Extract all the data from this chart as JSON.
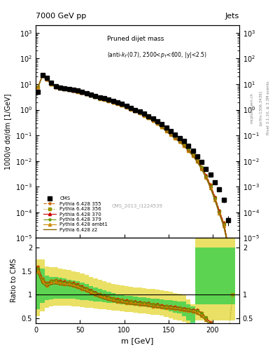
{
  "title_top": "7000 GeV pp",
  "title_right": "Jets",
  "annotation": "Pruned dijet mass (anti-k_{T}(0.7), 2500<p_{T}<600, |y|<2.5)",
  "cms_label": "CMS_2013_I1224539",
  "rivet_label": "Rivet 3.1.10, ≥ 3.3M events",
  "arxiv_label": "[arXiv:1306.3436]",
  "mcplots_label": "mcplots.cern.ch",
  "ylabel_main": "1000/σ dσ/dm [1/GeV]",
  "ylabel_ratio": "Ratio to CMS",
  "xlabel": "m [GeV]",
  "xlim": [
    0,
    230
  ],
  "ylim_main": [
    1e-05,
    2000.0
  ],
  "ylim_ratio": [
    0.4,
    2.2
  ],
  "cms_x": [
    2.5,
    7.5,
    12.5,
    17.5,
    22.5,
    27.5,
    32.5,
    37.5,
    42.5,
    47.5,
    52.5,
    57.5,
    62.5,
    67.5,
    72.5,
    77.5,
    82.5,
    87.5,
    92.5,
    97.5,
    102.5,
    107.5,
    112.5,
    117.5,
    122.5,
    127.5,
    132.5,
    137.5,
    142.5,
    147.5,
    152.5,
    157.5,
    162.5,
    167.5,
    172.5,
    177.5,
    182.5,
    187.5,
    192.5,
    197.5,
    202.5,
    207.5,
    212.5,
    217.5,
    222.5
  ],
  "cms_y": [
    5.0,
    22.0,
    18.0,
    11.0,
    8.5,
    7.5,
    7.0,
    6.5,
    6.0,
    5.5,
    5.0,
    4.5,
    4.0,
    3.5,
    3.0,
    2.8,
    2.5,
    2.2,
    2.0,
    1.7,
    1.4,
    1.2,
    1.0,
    0.85,
    0.7,
    0.55,
    0.45,
    0.35,
    0.28,
    0.2,
    0.15,
    0.11,
    0.08,
    0.06,
    0.04,
    0.025,
    0.015,
    0.009,
    0.005,
    0.003,
    0.0015,
    0.0008,
    0.0003,
    5e-05,
    5e-06
  ],
  "cms_yerr": [
    0.5,
    2.0,
    1.5,
    1.0,
    0.8,
    0.7,
    0.6,
    0.5,
    0.5,
    0.4,
    0.4,
    0.3,
    0.3,
    0.3,
    0.25,
    0.2,
    0.2,
    0.18,
    0.15,
    0.12,
    0.1,
    0.09,
    0.08,
    0.07,
    0.06,
    0.05,
    0.04,
    0.03,
    0.025,
    0.018,
    0.014,
    0.011,
    0.008,
    0.006,
    0.004,
    0.003,
    0.002,
    0.001,
    0.0008,
    0.0005,
    0.0003,
    0.00015,
    6e-05,
    2e-05,
    2e-06
  ],
  "mc_x": [
    2.5,
    7.5,
    12.5,
    17.5,
    22.5,
    27.5,
    32.5,
    37.5,
    42.5,
    47.5,
    52.5,
    57.5,
    62.5,
    67.5,
    72.5,
    77.5,
    82.5,
    87.5,
    92.5,
    97.5,
    102.5,
    107.5,
    112.5,
    117.5,
    122.5,
    127.5,
    132.5,
    137.5,
    142.5,
    147.5,
    152.5,
    157.5,
    162.5,
    167.5,
    172.5,
    177.5,
    182.5,
    187.5,
    192.5,
    197.5,
    202.5,
    207.5,
    212.5,
    217.5,
    222.5
  ],
  "py355_y": [
    8.0,
    22.0,
    16.0,
    10.5,
    8.0,
    7.2,
    6.8,
    6.3,
    5.8,
    5.3,
    4.8,
    4.3,
    3.8,
    3.35,
    2.9,
    2.65,
    2.35,
    2.05,
    1.85,
    1.6,
    1.35,
    1.15,
    0.96,
    0.8,
    0.66,
    0.52,
    0.41,
    0.31,
    0.23,
    0.165,
    0.12,
    0.088,
    0.063,
    0.045,
    0.03,
    0.019,
    0.011,
    0.006,
    0.0028,
    0.0012,
    0.0004,
    0.00012,
    4e-05,
    6e-06,
    8e-07
  ],
  "py356_y": [
    7.8,
    21.5,
    15.8,
    10.3,
    7.9,
    7.1,
    6.7,
    6.2,
    5.7,
    5.2,
    4.7,
    4.25,
    3.75,
    3.3,
    2.85,
    2.6,
    2.3,
    2.0,
    1.8,
    1.55,
    1.3,
    1.1,
    0.93,
    0.77,
    0.63,
    0.5,
    0.39,
    0.3,
    0.22,
    0.16,
    0.115,
    0.085,
    0.06,
    0.043,
    0.029,
    0.018,
    0.01,
    0.0055,
    0.0026,
    0.0011,
    0.00038,
    0.00011,
    3.5e-05,
    5e-06,
    7e-07
  ],
  "py370_y": [
    7.9,
    21.8,
    16.0,
    10.4,
    8.0,
    7.15,
    6.75,
    6.25,
    5.75,
    5.25,
    4.75,
    4.28,
    3.78,
    3.32,
    2.88,
    2.62,
    2.32,
    2.02,
    1.82,
    1.57,
    1.32,
    1.12,
    0.94,
    0.78,
    0.64,
    0.51,
    0.4,
    0.305,
    0.225,
    0.162,
    0.117,
    0.086,
    0.062,
    0.044,
    0.029,
    0.018,
    0.011,
    0.0056,
    0.0027,
    0.0011,
    0.00039,
    0.00011,
    3.6e-05,
    5.5e-06,
    7.5e-07
  ],
  "py379_y": [
    7.85,
    21.6,
    15.9,
    10.35,
    7.95,
    7.12,
    6.72,
    6.22,
    5.72,
    5.22,
    4.72,
    4.26,
    3.76,
    3.3,
    2.86,
    2.6,
    2.3,
    2.0,
    1.8,
    1.55,
    1.3,
    1.1,
    0.92,
    0.77,
    0.63,
    0.5,
    0.39,
    0.3,
    0.22,
    0.158,
    0.114,
    0.084,
    0.06,
    0.043,
    0.028,
    0.0175,
    0.0105,
    0.0054,
    0.0025,
    0.001,
    0.00035,
    0.0001,
    3.3e-05,
    5e-06,
    7e-07
  ],
  "pyambt1_y": [
    7.7,
    21.0,
    15.5,
    10.0,
    7.7,
    6.9,
    6.5,
    6.0,
    5.5,
    5.0,
    4.55,
    4.1,
    3.6,
    3.15,
    2.72,
    2.48,
    2.2,
    1.92,
    1.72,
    1.48,
    1.25,
    1.06,
    0.89,
    0.74,
    0.6,
    0.48,
    0.375,
    0.285,
    0.21,
    0.15,
    0.108,
    0.079,
    0.057,
    0.04,
    0.026,
    0.016,
    0.0095,
    0.005,
    0.0023,
    0.0009,
    0.0003,
    9e-05,
    3e-05,
    4.5e-06,
    6e-07
  ],
  "pyz2_y": [
    7.5,
    20.5,
    15.2,
    9.8,
    7.5,
    6.75,
    6.35,
    5.85,
    5.4,
    4.9,
    4.45,
    4.0,
    3.52,
    3.08,
    2.66,
    2.42,
    2.15,
    1.88,
    1.68,
    1.45,
    1.22,
    1.03,
    0.87,
    0.72,
    0.59,
    0.47,
    0.365,
    0.278,
    0.205,
    0.146,
    0.105,
    0.077,
    0.055,
    0.039,
    0.025,
    0.016,
    0.0092,
    0.0048,
    0.0022,
    0.00088,
    0.0003,
    8.8e-05,
    2.8e-05,
    4.2e-06,
    5.5e-07
  ],
  "ratio_py355": [
    1.6,
    1.35,
    1.25,
    1.3,
    1.32,
    1.3,
    1.28,
    1.27,
    1.25,
    1.22,
    1.18,
    1.14,
    1.1,
    1.05,
    1.02,
    0.99,
    0.96,
    0.93,
    0.91,
    0.9,
    0.88,
    0.87,
    0.85,
    0.84,
    0.83,
    0.82,
    0.8,
    0.79,
    0.78,
    0.77,
    0.76,
    0.75,
    0.73,
    0.71,
    0.7,
    0.68,
    0.68,
    0.62,
    0.52,
    0.42,
    0.28,
    0.15,
    0.14,
    0.12,
    0.16
  ],
  "ratio_py356": [
    1.55,
    1.3,
    1.22,
    1.28,
    1.29,
    1.27,
    1.26,
    1.25,
    1.23,
    1.2,
    1.16,
    1.12,
    1.08,
    1.04,
    1.0,
    0.97,
    0.94,
    0.91,
    0.89,
    0.88,
    0.86,
    0.85,
    0.84,
    0.83,
    0.82,
    0.81,
    0.79,
    0.78,
    0.76,
    0.75,
    0.74,
    0.73,
    0.72,
    0.7,
    0.69,
    0.67,
    0.67,
    0.6,
    0.51,
    0.38,
    0.26,
    0.14,
    0.12,
    0.1,
    1.0
  ],
  "ratio_py370": [
    1.57,
    1.32,
    1.23,
    1.29,
    1.3,
    1.28,
    1.27,
    1.26,
    1.24,
    1.21,
    1.17,
    1.13,
    1.09,
    1.05,
    1.01,
    0.98,
    0.95,
    0.92,
    0.9,
    0.89,
    0.87,
    0.86,
    0.85,
    0.84,
    0.83,
    0.82,
    0.8,
    0.79,
    0.77,
    0.76,
    0.75,
    0.74,
    0.73,
    0.71,
    0.7,
    0.68,
    0.68,
    0.61,
    0.51,
    0.4,
    0.27,
    0.14,
    0.13,
    0.11,
    0.15
  ],
  "ratio_py379": [
    1.56,
    1.31,
    1.23,
    1.28,
    1.3,
    1.27,
    1.26,
    1.25,
    1.23,
    1.2,
    1.16,
    1.12,
    1.08,
    1.04,
    1.0,
    0.97,
    0.94,
    0.91,
    0.89,
    0.88,
    0.86,
    0.85,
    0.84,
    0.83,
    0.82,
    0.81,
    0.79,
    0.78,
    0.76,
    0.75,
    0.74,
    0.73,
    0.72,
    0.7,
    0.69,
    0.67,
    0.67,
    0.6,
    0.51,
    0.38,
    0.25,
    0.13,
    0.12,
    0.1,
    0.14
  ],
  "ratio_pyambt1": [
    1.5,
    1.28,
    1.2,
    1.25,
    1.27,
    1.24,
    1.23,
    1.22,
    1.2,
    1.17,
    1.13,
    1.09,
    1.05,
    1.01,
    0.97,
    0.94,
    0.91,
    0.88,
    0.86,
    0.85,
    0.83,
    0.82,
    0.81,
    0.8,
    0.79,
    0.78,
    0.76,
    0.75,
    0.74,
    0.73,
    0.72,
    0.71,
    0.7,
    0.68,
    0.67,
    0.65,
    0.62,
    0.56,
    0.47,
    0.35,
    0.22,
    0.12,
    0.11,
    0.09,
    0.12
  ],
  "ratio_pyz2": [
    1.45,
    1.24,
    1.17,
    1.22,
    1.23,
    1.21,
    1.2,
    1.19,
    1.17,
    1.14,
    1.1,
    1.07,
    1.02,
    0.98,
    0.94,
    0.91,
    0.88,
    0.86,
    0.84,
    0.83,
    0.81,
    0.8,
    0.79,
    0.78,
    0.77,
    0.76,
    0.74,
    0.73,
    0.72,
    0.71,
    0.7,
    0.69,
    0.68,
    0.66,
    0.65,
    0.63,
    0.6,
    0.54,
    0.46,
    0.34,
    0.22,
    0.11,
    0.1,
    0.08,
    0.11
  ],
  "band_x": [
    0,
    5,
    10,
    15,
    20,
    25,
    30,
    35,
    40,
    45,
    50,
    55,
    60,
    65,
    70,
    75,
    80,
    85,
    90,
    95,
    100,
    105,
    110,
    115,
    120,
    125,
    130,
    135,
    140,
    145,
    150,
    155,
    160,
    165,
    170,
    175,
    180,
    185,
    190,
    195,
    200,
    205,
    210,
    215,
    220,
    225
  ],
  "band_green_lo": [
    0.7,
    0.82,
    0.88,
    0.9,
    0.92,
    0.92,
    0.92,
    0.92,
    0.91,
    0.9,
    0.89,
    0.88,
    0.87,
    0.86,
    0.85,
    0.84,
    0.83,
    0.82,
    0.81,
    0.8,
    0.79,
    0.78,
    0.77,
    0.76,
    0.75,
    0.74,
    0.73,
    0.72,
    0.71,
    0.68,
    0.65,
    0.62,
    0.6,
    0.55,
    0.45,
    0.4,
    0.8,
    0.8,
    0.8,
    0.8,
    0.8,
    0.8,
    0.8,
    0.8,
    0.8,
    0.8
  ],
  "band_green_hi": [
    1.55,
    1.55,
    1.4,
    1.38,
    1.38,
    1.36,
    1.34,
    1.32,
    1.3,
    1.28,
    1.25,
    1.22,
    1.18,
    1.15,
    1.12,
    1.09,
    1.06,
    1.03,
    1.01,
    1.0,
    0.98,
    0.97,
    0.96,
    0.95,
    0.94,
    0.93,
    0.92,
    0.91,
    0.9,
    0.89,
    0.88,
    0.87,
    0.86,
    0.85,
    0.8,
    0.75,
    2.0,
    2.0,
    2.0,
    2.0,
    2.0,
    2.0,
    2.0,
    2.0,
    2.0,
    2.0
  ],
  "band_yellow_lo": [
    0.55,
    0.65,
    0.72,
    0.75,
    0.77,
    0.77,
    0.77,
    0.77,
    0.76,
    0.75,
    0.74,
    0.73,
    0.72,
    0.71,
    0.7,
    0.69,
    0.68,
    0.67,
    0.66,
    0.65,
    0.64,
    0.63,
    0.62,
    0.61,
    0.6,
    0.59,
    0.58,
    0.57,
    0.56,
    0.53,
    0.5,
    0.47,
    0.45,
    0.42,
    0.4,
    0.42,
    0.45,
    0.45,
    0.45,
    0.45,
    0.45,
    0.45,
    0.45,
    0.45,
    0.45,
    0.45
  ],
  "band_yellow_hi": [
    1.75,
    1.75,
    1.6,
    1.58,
    1.58,
    1.56,
    1.54,
    1.52,
    1.5,
    1.48,
    1.45,
    1.42,
    1.38,
    1.35,
    1.32,
    1.29,
    1.26,
    1.23,
    1.21,
    1.2,
    1.18,
    1.17,
    1.16,
    1.15,
    1.14,
    1.13,
    1.12,
    1.11,
    1.1,
    1.08,
    1.06,
    1.04,
    1.02,
    1.0,
    0.9,
    0.8,
    2.2,
    2.2,
    2.2,
    2.2,
    2.2,
    2.2,
    2.2,
    2.2,
    2.2,
    2.2
  ],
  "color_355": "#cc6600",
  "color_356": "#999900",
  "color_370": "#cc0000",
  "color_379": "#669900",
  "color_ambt1": "#cc8800",
  "color_z2": "#886600",
  "color_cms": "#000000",
  "color_green_band": "#00cc44",
  "color_yellow_band": "#ddcc00",
  "figsize": [
    3.93,
    5.12
  ],
  "dpi": 100
}
